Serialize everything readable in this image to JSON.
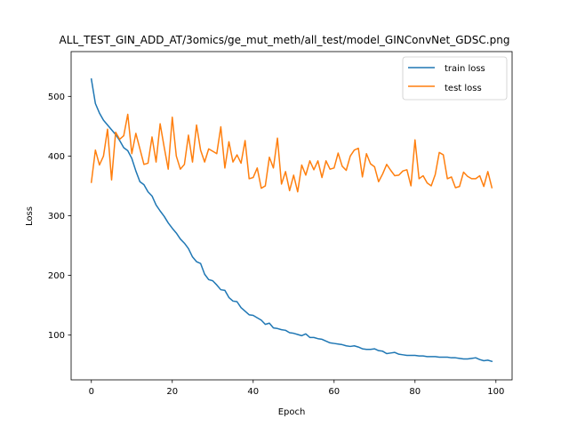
{
  "chart_data": {
    "type": "line",
    "title": "ALL_TEST_GIN_ADD_AT/3omics/ge_mut_meth/all_test/model_GINConvNet_GDSC.png",
    "xlabel": "Epoch",
    "ylabel": "Loss",
    "xlim": [
      -5,
      104
    ],
    "ylim": [
      25,
      575
    ],
    "xticks": [
      0,
      20,
      40,
      60,
      80,
      100
    ],
    "yticks": [
      100,
      200,
      300,
      400,
      500
    ],
    "grid": false,
    "legend_position": "upper right",
    "series": [
      {
        "name": "train loss",
        "color": "#1f77b4",
        "values": [
          529,
          488,
          472,
          460,
          452,
          444,
          436,
          426,
          414,
          409,
          396,
          375,
          357,
          352,
          340,
          333,
          318,
          308,
          299,
          288,
          279,
          271,
          261,
          254,
          245,
          231,
          223,
          220,
          202,
          193,
          191,
          184,
          176,
          175,
          163,
          157,
          156,
          146,
          140,
          134,
          133,
          129,
          125,
          118,
          120,
          112,
          111,
          109,
          108,
          104,
          103,
          101,
          99,
          102,
          96,
          96,
          94,
          93,
          90,
          87,
          86,
          85,
          84,
          82,
          81,
          82,
          80,
          77,
          76,
          76,
          77,
          74,
          73,
          69,
          70,
          71,
          68,
          67,
          66,
          66,
          66,
          65,
          65,
          64,
          64,
          64,
          63,
          63,
          63,
          62,
          62,
          61,
          60,
          60,
          61,
          62,
          59,
          57,
          58,
          56
        ]
      },
      {
        "name": "test loss",
        "color": "#ff7f0e",
        "values": [
          356,
          410,
          385,
          400,
          445,
          360,
          440,
          428,
          434,
          470,
          404,
          438,
          412,
          386,
          388,
          432,
          390,
          454,
          415,
          378,
          465,
          400,
          378,
          386,
          435,
          390,
          452,
          410,
          390,
          412,
          408,
          404,
          449,
          380,
          424,
          390,
          402,
          388,
          426,
          362,
          364,
          380,
          346,
          350,
          398,
          380,
          430,
          353,
          374,
          342,
          368,
          340,
          385,
          368,
          392,
          377,
          392,
          364,
          392,
          378,
          380,
          405,
          383,
          376,
          400,
          410,
          413,
          365,
          404,
          387,
          382,
          357,
          370,
          386,
          376,
          367,
          368,
          375,
          377,
          350,
          427,
          362,
          367,
          355,
          350,
          369,
          406,
          402,
          362,
          365,
          347,
          349,
          373,
          366,
          362,
          362,
          367,
          349,
          374,
          347
        ]
      }
    ]
  }
}
